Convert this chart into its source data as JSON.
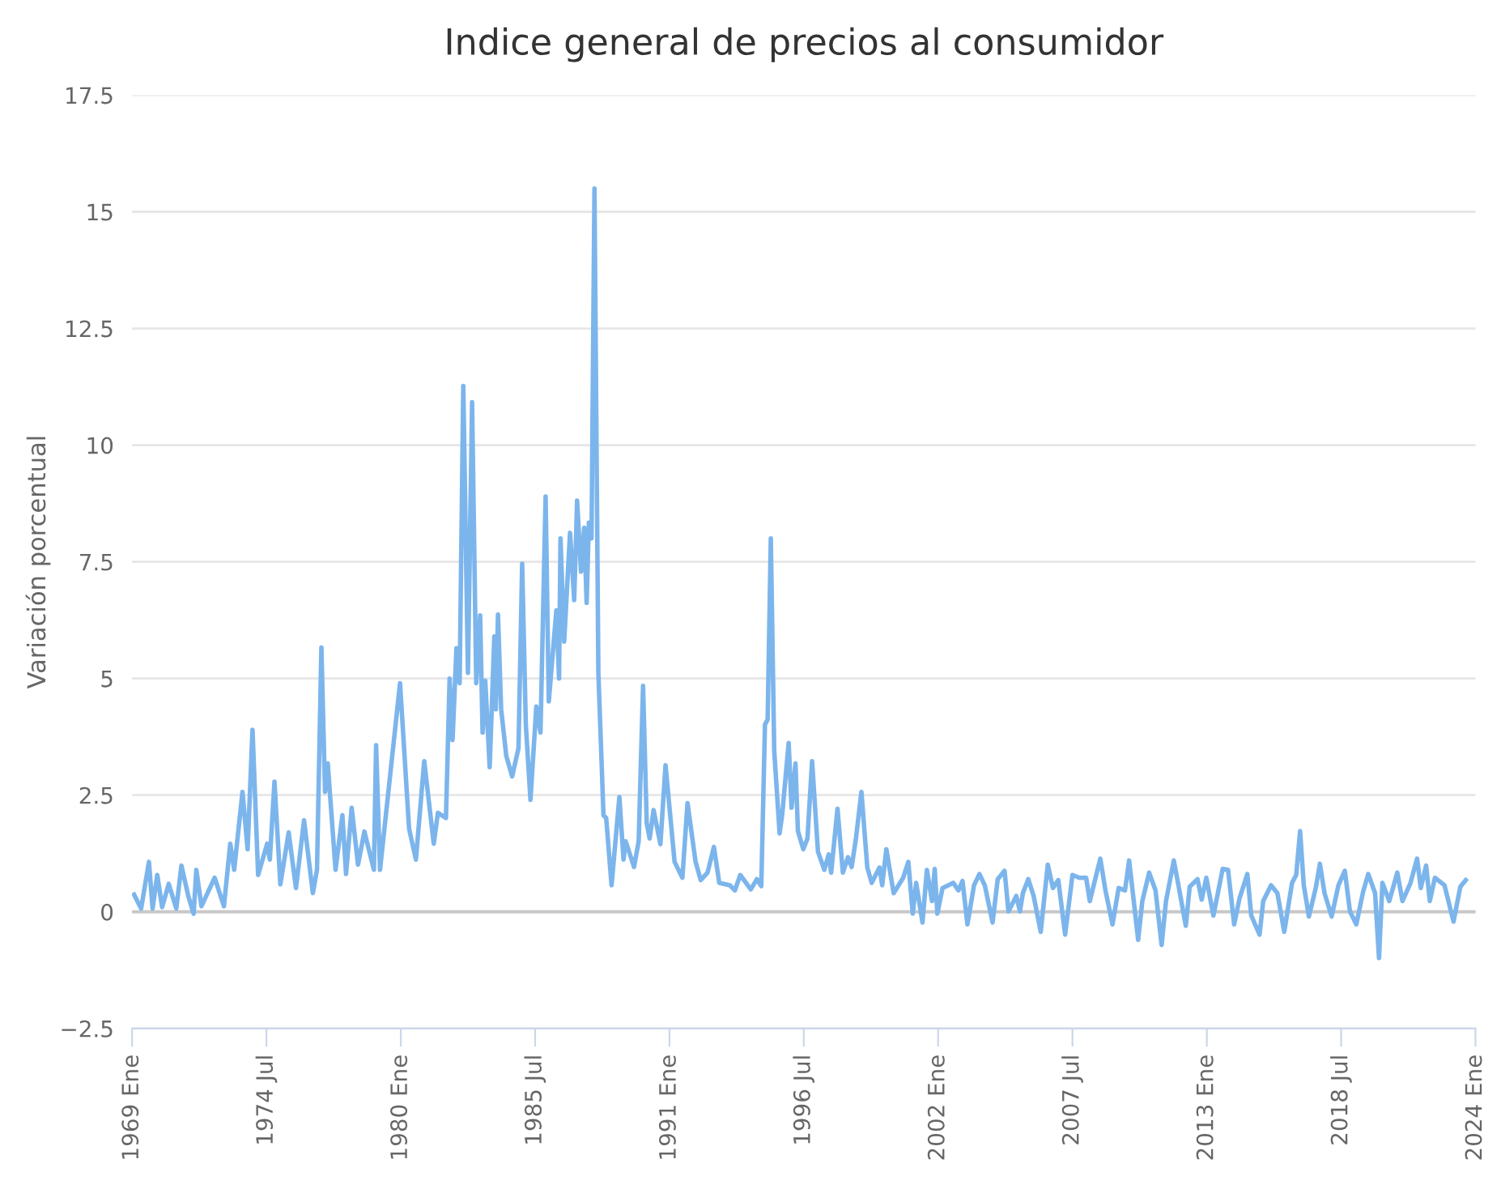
{
  "chart_data": {
    "type": "line",
    "title": "Indice general de precios al consumidor",
    "ylabel": "Variación porcentual",
    "x": [
      1969.08,
      1969.37,
      1969.69,
      1969.84,
      1970.03,
      1970.23,
      1970.5,
      1970.81,
      1971.02,
      1971.3,
      1971.52,
      1971.63,
      1971.84,
      1972.38,
      1972.76,
      1973.02,
      1973.18,
      1973.52,
      1973.73,
      1973.93,
      1974.16,
      1974.53,
      1974.64,
      1974.83,
      1975.07,
      1975.41,
      1975.71,
      1976.04,
      1976.4,
      1976.57,
      1976.75,
      1976.9,
      1977.01,
      1977.33,
      1977.61,
      1977.76,
      1977.99,
      1978.25,
      1978.51,
      1978.9,
      1978.99,
      1979.15,
      1979.97,
      1980.34,
      1980.62,
      1980.96,
      1981.35,
      1981.52,
      1981.85,
      1982.0,
      1982.12,
      1982.28,
      1982.41,
      1982.56,
      1982.75,
      1982.92,
      1983.09,
      1983.25,
      1983.35,
      1983.46,
      1983.64,
      1983.83,
      1983.89,
      1983.98,
      1984.11,
      1984.32,
      1984.56,
      1984.82,
      1984.97,
      1985.12,
      1985.31,
      1985.55,
      1985.72,
      1985.93,
      1986.06,
      1986.37,
      1986.48,
      1986.54,
      1986.69,
      1986.93,
      1987.1,
      1987.22,
      1987.38,
      1987.51,
      1987.61,
      1987.7,
      1987.81,
      1987.93,
      1988.09,
      1988.3,
      1988.41,
      1988.63,
      1988.95,
      1989.12,
      1989.21,
      1989.55,
      1989.74,
      1989.92,
      1990.07,
      1990.19,
      1990.35,
      1990.63,
      1990.84,
      1991.21,
      1991.53,
      1991.74,
      1992.07,
      1992.28,
      1992.56,
      1992.82,
      1993.04,
      1993.47,
      1993.68,
      1993.9,
      1994.33,
      1994.58,
      1994.76,
      1994.91,
      1995.02,
      1995.15,
      1995.29,
      1995.51,
      1995.62,
      1995.88,
      1996.0,
      1996.16,
      1996.26,
      1996.48,
      1996.65,
      1996.84,
      1997.08,
      1997.34,
      1997.52,
      1997.62,
      1997.88,
      1998.1,
      1998.31,
      1998.46,
      1998.63,
      1998.86,
      1999.1,
      1999.28,
      1999.6,
      1999.71,
      1999.88,
      2000.18,
      2000.57,
      2000.78,
      2000.96,
      2001.1,
      2001.36,
      2001.54,
      2001.75,
      2001.86,
      2001.97,
      2002.18,
      2002.62,
      2002.83,
      2003.0,
      2003.2,
      2003.47,
      2003.69,
      2003.91,
      2004.23,
      2004.44,
      2004.72,
      2004.88,
      2005.2,
      2005.35,
      2005.47,
      2005.69,
      2005.91,
      2006.2,
      2006.49,
      2006.7,
      2006.92,
      2007.2,
      2007.5,
      2007.78,
      2008.06,
      2008.21,
      2008.64,
      2008.85,
      2009.14,
      2009.39,
      2009.65,
      2009.82,
      2010.19,
      2010.36,
      2010.64,
      2010.9,
      2011.15,
      2011.33,
      2011.65,
      2011.86,
      2012.14,
      2012.3,
      2012.62,
      2012.79,
      2012.98,
      2013.27,
      2013.65,
      2013.87,
      2014.12,
      2014.34,
      2014.66,
      2014.82,
      2015.16,
      2015.31,
      2015.63,
      2015.89,
      2016.17,
      2016.49,
      2016.66,
      2016.82,
      2016.97,
      2017.18,
      2017.46,
      2017.63,
      2017.82,
      2018.11,
      2018.39,
      2018.65,
      2018.86,
      2019.12,
      2019.4,
      2019.61,
      2019.89,
      2020.05,
      2020.19,
      2020.47,
      2020.8,
      2021.01,
      2021.34,
      2021.61,
      2021.76,
      2021.98,
      2022.13,
      2022.34,
      2022.73,
      2023.1,
      2023.38,
      2023.6
    ],
    "series": [
      {
        "color": "#7cb5ec",
        "values": [
          0.37,
          0.07,
          1.07,
          0.07,
          0.79,
          0.1,
          0.6,
          0.07,
          0.99,
          0.34,
          -0.04,
          0.9,
          0.12,
          0.73,
          0.12,
          1.46,
          0.9,
          2.57,
          1.34,
          3.9,
          0.79,
          1.46,
          1.12,
          2.79,
          0.59,
          1.7,
          0.51,
          1.96,
          0.4,
          0.9,
          5.66,
          2.57,
          3.18,
          0.9,
          2.07,
          0.81,
          2.23,
          1.01,
          1.72,
          0.9,
          3.57,
          0.9,
          4.9,
          1.78,
          1.12,
          3.23,
          1.46,
          2.12,
          2.01,
          5.0,
          3.68,
          5.65,
          4.9,
          11.27,
          5.12,
          10.92,
          4.9,
          6.35,
          3.84,
          4.95,
          3.1,
          5.9,
          4.34,
          6.37,
          4.34,
          3.34,
          2.9,
          3.51,
          7.46,
          4.01,
          2.4,
          4.4,
          3.84,
          8.9,
          4.51,
          6.46,
          5.0,
          8.0,
          5.79,
          8.12,
          6.68,
          8.81,
          7.29,
          8.23,
          6.62,
          8.34,
          8.0,
          15.5,
          5.12,
          2.07,
          2.01,
          0.57,
          2.46,
          1.12,
          1.51,
          0.96,
          1.51,
          4.84,
          1.9,
          1.57,
          2.18,
          1.45,
          3.14,
          1.07,
          0.73,
          2.33,
          1.07,
          0.68,
          0.84,
          1.39,
          0.62,
          0.57,
          0.46,
          0.79,
          0.48,
          0.7,
          0.55,
          4.01,
          4.12,
          8.0,
          3.45,
          1.68,
          2.1,
          3.62,
          2.23,
          3.18,
          1.73,
          1.34,
          1.57,
          3.23,
          1.29,
          0.9,
          1.23,
          0.84,
          2.21,
          0.84,
          1.17,
          0.96,
          1.55,
          2.57,
          0.95,
          0.62,
          0.95,
          0.57,
          1.34,
          0.4,
          0.73,
          1.07,
          -0.04,
          0.62,
          -0.23,
          0.9,
          0.23,
          0.92,
          -0.04,
          0.51,
          0.62,
          0.46,
          0.66,
          -0.27,
          0.57,
          0.81,
          0.57,
          -0.23,
          0.7,
          0.88,
          0.01,
          0.34,
          0.01,
          0.4,
          0.7,
          0.34,
          -0.43,
          1.01,
          0.51,
          0.68,
          -0.49,
          0.79,
          0.73,
          0.73,
          0.23,
          1.14,
          0.46,
          -0.27,
          0.51,
          0.46,
          1.1,
          -0.6,
          0.23,
          0.84,
          0.46,
          -0.71,
          0.23,
          1.1,
          0.51,
          -0.3,
          0.54,
          0.7,
          0.26,
          0.73,
          -0.08,
          0.92,
          0.9,
          -0.27,
          0.29,
          0.81,
          -0.08,
          -0.49,
          0.23,
          0.57,
          0.4,
          -0.43,
          0.62,
          0.79,
          1.73,
          0.57,
          -0.1,
          0.51,
          1.03,
          0.4,
          -0.1,
          0.57,
          0.88,
          0.01,
          -0.27,
          0.43,
          0.81,
          0.4,
          -0.99,
          0.62,
          0.23,
          0.84,
          0.23,
          0.62,
          1.14,
          0.51,
          0.99,
          0.23,
          0.73,
          0.57,
          -0.21,
          0.54,
          0.68
        ]
      }
    ],
    "xlim": [
      1969,
      2024
    ],
    "xticks": [
      {
        "value": 1969,
        "label": "1969 Ene"
      },
      {
        "value": 1974.5,
        "label": "1974 Jul"
      },
      {
        "value": 1980,
        "label": "1980 Ene"
      },
      {
        "value": 1985.5,
        "label": "1985 Jul"
      },
      {
        "value": 1991,
        "label": "1991 Ene"
      },
      {
        "value": 1996.5,
        "label": "1996 Jul"
      },
      {
        "value": 2002,
        "label": "2002 Ene"
      },
      {
        "value": 2007.5,
        "label": "2007 Jul"
      },
      {
        "value": 2013,
        "label": "2013 Ene"
      },
      {
        "value": 2018.5,
        "label": "2018 Jul"
      },
      {
        "value": 2024,
        "label": "2024 Ene"
      }
    ],
    "ylim": [
      -2.5,
      17.5
    ],
    "yticks": [
      {
        "value": -2.5,
        "label": "−2.5"
      },
      0,
      2.5,
      5,
      7.5,
      10,
      12.5,
      15,
      17.5
    ],
    "ref_lines": [
      {
        "axis": "y",
        "value": 0,
        "color": "#c8c8c8"
      }
    ],
    "grid": "y",
    "marker": "none",
    "line_style": "solid",
    "legend": false
  }
}
